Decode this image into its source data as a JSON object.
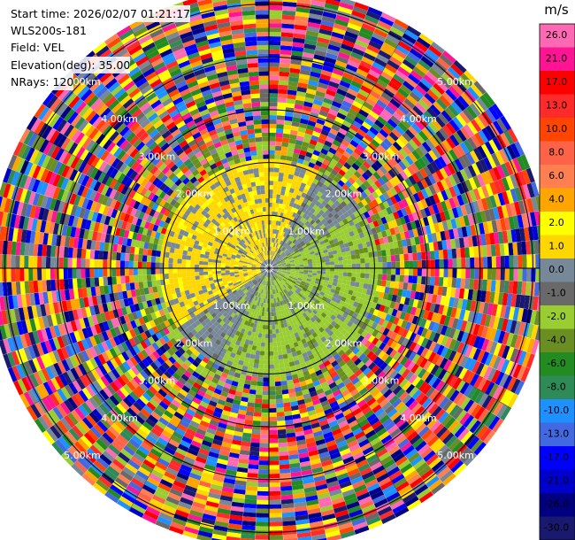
{
  "header": {
    "start_time": "Start time: 2026/02/07 01:21:17",
    "instrument": "WLS200s-181",
    "field": "Field: VEL",
    "elevation": "Elevation(deg): 35.00",
    "nrays": "NRays: 120"
  },
  "chart_data": {
    "type": "heatmap",
    "projection": "polar-ppi",
    "field": "VEL",
    "units": "m/s",
    "n_rays": 120,
    "range_rings_km": [
      1,
      2,
      3,
      4,
      5
    ],
    "ring_labels": [
      "1.00km",
      "2.00km",
      "3.00km",
      "4.00km",
      "5.00km"
    ],
    "max_range_km": 5.3,
    "clean_region_km": 2.1,
    "colorbar": {
      "title": "m/s",
      "ticks": [
        "26.0",
        "21.0",
        "17.0",
        "13.0",
        "10.0",
        "8.0",
        "6.0",
        "4.0",
        "2.0",
        "1.0",
        "0.0",
        "-1.0",
        "-2.0",
        "-4.0",
        "-6.0",
        "-8.0",
        "-10.0",
        "-13.0",
        "-17.0",
        "-21.0",
        "-26.0",
        "-30.0"
      ],
      "colors": [
        "#ff69b4",
        "#ff1493",
        "#ff0000",
        "#ff2a2a",
        "#ff4500",
        "#ff6347",
        "#ff7f50",
        "#ffa500",
        "#ffff00",
        "#ffd700",
        "#778899",
        "#696969",
        "#9acd32",
        "#6b8e23",
        "#228b22",
        "#2e8b57",
        "#1e90ff",
        "#4169e1",
        "#0000ff",
        "#0000cd",
        "#000080",
        "#191970"
      ]
    },
    "pattern": {
      "near_approaching": "-1.0 to -2.0 (green) in east/south sector",
      "near_receding": "1.0 to 2.0 (yellow) in west/north sector",
      "far_field": "noise (all colors) beyond ~2.3 km"
    }
  }
}
